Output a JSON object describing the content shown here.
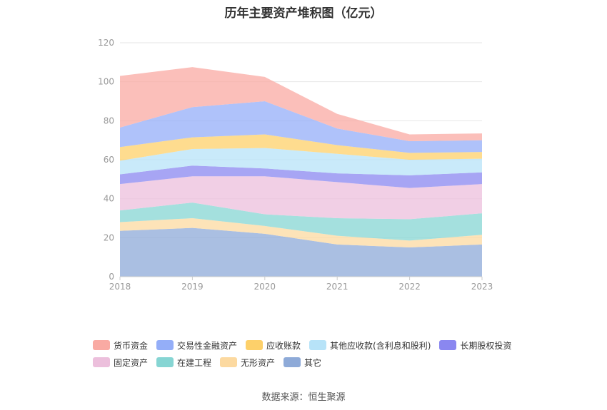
{
  "chart_data": {
    "type": "area",
    "stacked": true,
    "title": "历年主要资产堆积图（亿元）",
    "xlabel": "",
    "ylabel": "",
    "x": [
      "2018",
      "2019",
      "2020",
      "2021",
      "2022",
      "2023"
    ],
    "ylim": [
      0,
      120
    ],
    "yticks": [
      0,
      20,
      40,
      60,
      80,
      100,
      120
    ],
    "grid": true,
    "legend_position": "bottom",
    "series": [
      {
        "name": "其它",
        "color": "#8eaad8",
        "values": [
          23.5,
          25,
          22,
          16.5,
          15,
          16.5
        ]
      },
      {
        "name": "无形资产",
        "color": "#fcd9a0",
        "values": [
          4.5,
          5,
          4,
          4.5,
          3.5,
          5
        ]
      },
      {
        "name": "在建工程",
        "color": "#86d5d3",
        "values": [
          6,
          8,
          6,
          9,
          11,
          11
        ]
      },
      {
        "name": "固定资产",
        "color": "#ecbfdc",
        "values": [
          13.5,
          13.5,
          19.5,
          18.5,
          16,
          15
        ]
      },
      {
        "name": "长期股权投资",
        "color": "#8a87f0",
        "values": [
          5,
          5.5,
          4,
          4.5,
          6.5,
          6
        ]
      },
      {
        "name": "其他应收款(含利息和股利)",
        "color": "#b7e3f8",
        "values": [
          7,
          8.5,
          10.5,
          10,
          8,
          7
        ]
      },
      {
        "name": "应收账款",
        "color": "#fdd06a",
        "values": [
          7,
          6,
          7,
          4.5,
          3.5,
          3.5
        ]
      },
      {
        "name": "交易性金融资产",
        "color": "#94aef8",
        "values": [
          10,
          15.5,
          17,
          8.5,
          6,
          6
        ]
      },
      {
        "name": "货币资金",
        "color": "#f9aaa3",
        "values": [
          26.5,
          20.5,
          12.5,
          7.5,
          3.5,
          3.5
        ]
      }
    ]
  },
  "legend": {
    "row1": [
      {
        "label": "货币资金",
        "color": "#f9aaa3"
      },
      {
        "label": "交易性金融资产",
        "color": "#94aef8"
      },
      {
        "label": "应收账款",
        "color": "#fdd06a"
      },
      {
        "label": "其他应收款(含利息和股利)",
        "color": "#b7e3f8"
      },
      {
        "label": "长期股权投资",
        "color": "#8a87f0"
      }
    ],
    "row2": [
      {
        "label": "固定资产",
        "color": "#ecbfdc"
      },
      {
        "label": "在建工程",
        "color": "#86d5d3"
      },
      {
        "label": "无形资产",
        "color": "#fcd9a0"
      },
      {
        "label": "其它",
        "color": "#8eaad8"
      }
    ]
  },
  "source": "数据来源：恒生聚源"
}
